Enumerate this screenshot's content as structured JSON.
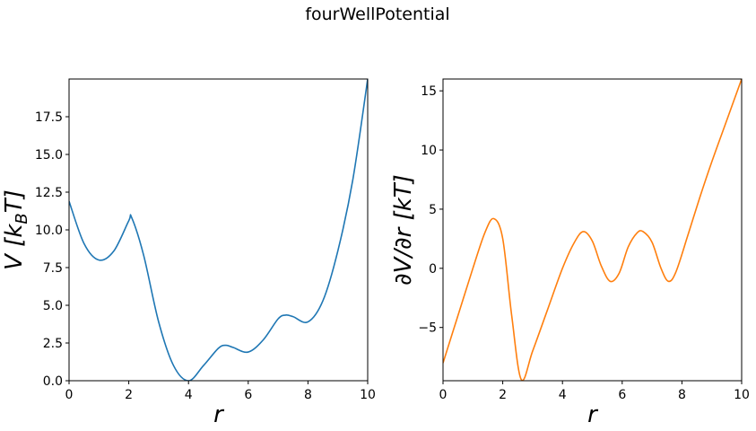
{
  "title": "fourWellPotential",
  "chart_data": [
    {
      "type": "line",
      "xlabel": "r",
      "ylabel": "V [k_BT]",
      "xlim": [
        0,
        10
      ],
      "ylim": [
        0,
        20
      ],
      "x_ticks": [
        "0",
        "2",
        "4",
        "6",
        "8",
        "10"
      ],
      "y_ticks": [
        "0.0",
        "2.5",
        "5.0",
        "7.5",
        "10.0",
        "12.5",
        "15.0",
        "17.5"
      ],
      "grid": false,
      "color": "#1f77b4",
      "series": [
        {
          "x": [
            0,
            0.5,
            1.0,
            1.5,
            2.0,
            2.1,
            2.5,
            3.0,
            3.5,
            4.0,
            4.5,
            5.0,
            5.25,
            5.5,
            6.0,
            6.5,
            7.0,
            7.25,
            7.5,
            8.0,
            8.5,
            9.0,
            9.5,
            10.0
          ],
          "values": [
            11.9,
            9.1,
            8.0,
            8.6,
            10.6,
            10.8,
            8.3,
            3.9,
            1.0,
            0.0,
            1.0,
            2.15,
            2.35,
            2.2,
            1.9,
            2.7,
            4.1,
            4.35,
            4.25,
            3.9,
            5.3,
            8.6,
            13.3,
            20.0
          ]
        }
      ]
    },
    {
      "type": "line",
      "xlabel": "r",
      "ylabel": "∂V/∂r [kT]",
      "xlim": [
        0,
        10
      ],
      "ylim": [
        -9.5,
        16
      ],
      "x_ticks": [
        "0",
        "2",
        "4",
        "6",
        "8",
        "10"
      ],
      "y_ticks": [
        "−5",
        "0",
        "5",
        "10",
        "15"
      ],
      "grid": false,
      "color": "#ff7f0e",
      "series": [
        {
          "x": [
            0,
            0.5,
            1.0,
            1.4,
            1.7,
            2.0,
            2.3,
            2.62,
            3.0,
            3.5,
            4.0,
            4.4,
            4.7,
            5.0,
            5.3,
            5.6,
            5.9,
            6.2,
            6.5,
            6.7,
            7.0,
            7.3,
            7.55,
            7.8,
            8.2,
            8.6,
            9.0,
            9.5,
            10.0
          ],
          "values": [
            -8.0,
            -4.0,
            0.0,
            3.0,
            4.2,
            2.5,
            -4.0,
            -9.4,
            -7.0,
            -3.5,
            0.0,
            2.2,
            3.1,
            2.3,
            0.2,
            -1.1,
            -0.4,
            1.8,
            3.0,
            3.1,
            2.2,
            0.0,
            -1.1,
            -0.3,
            2.8,
            6.0,
            9.0,
            12.5,
            16.0
          ]
        }
      ]
    }
  ]
}
